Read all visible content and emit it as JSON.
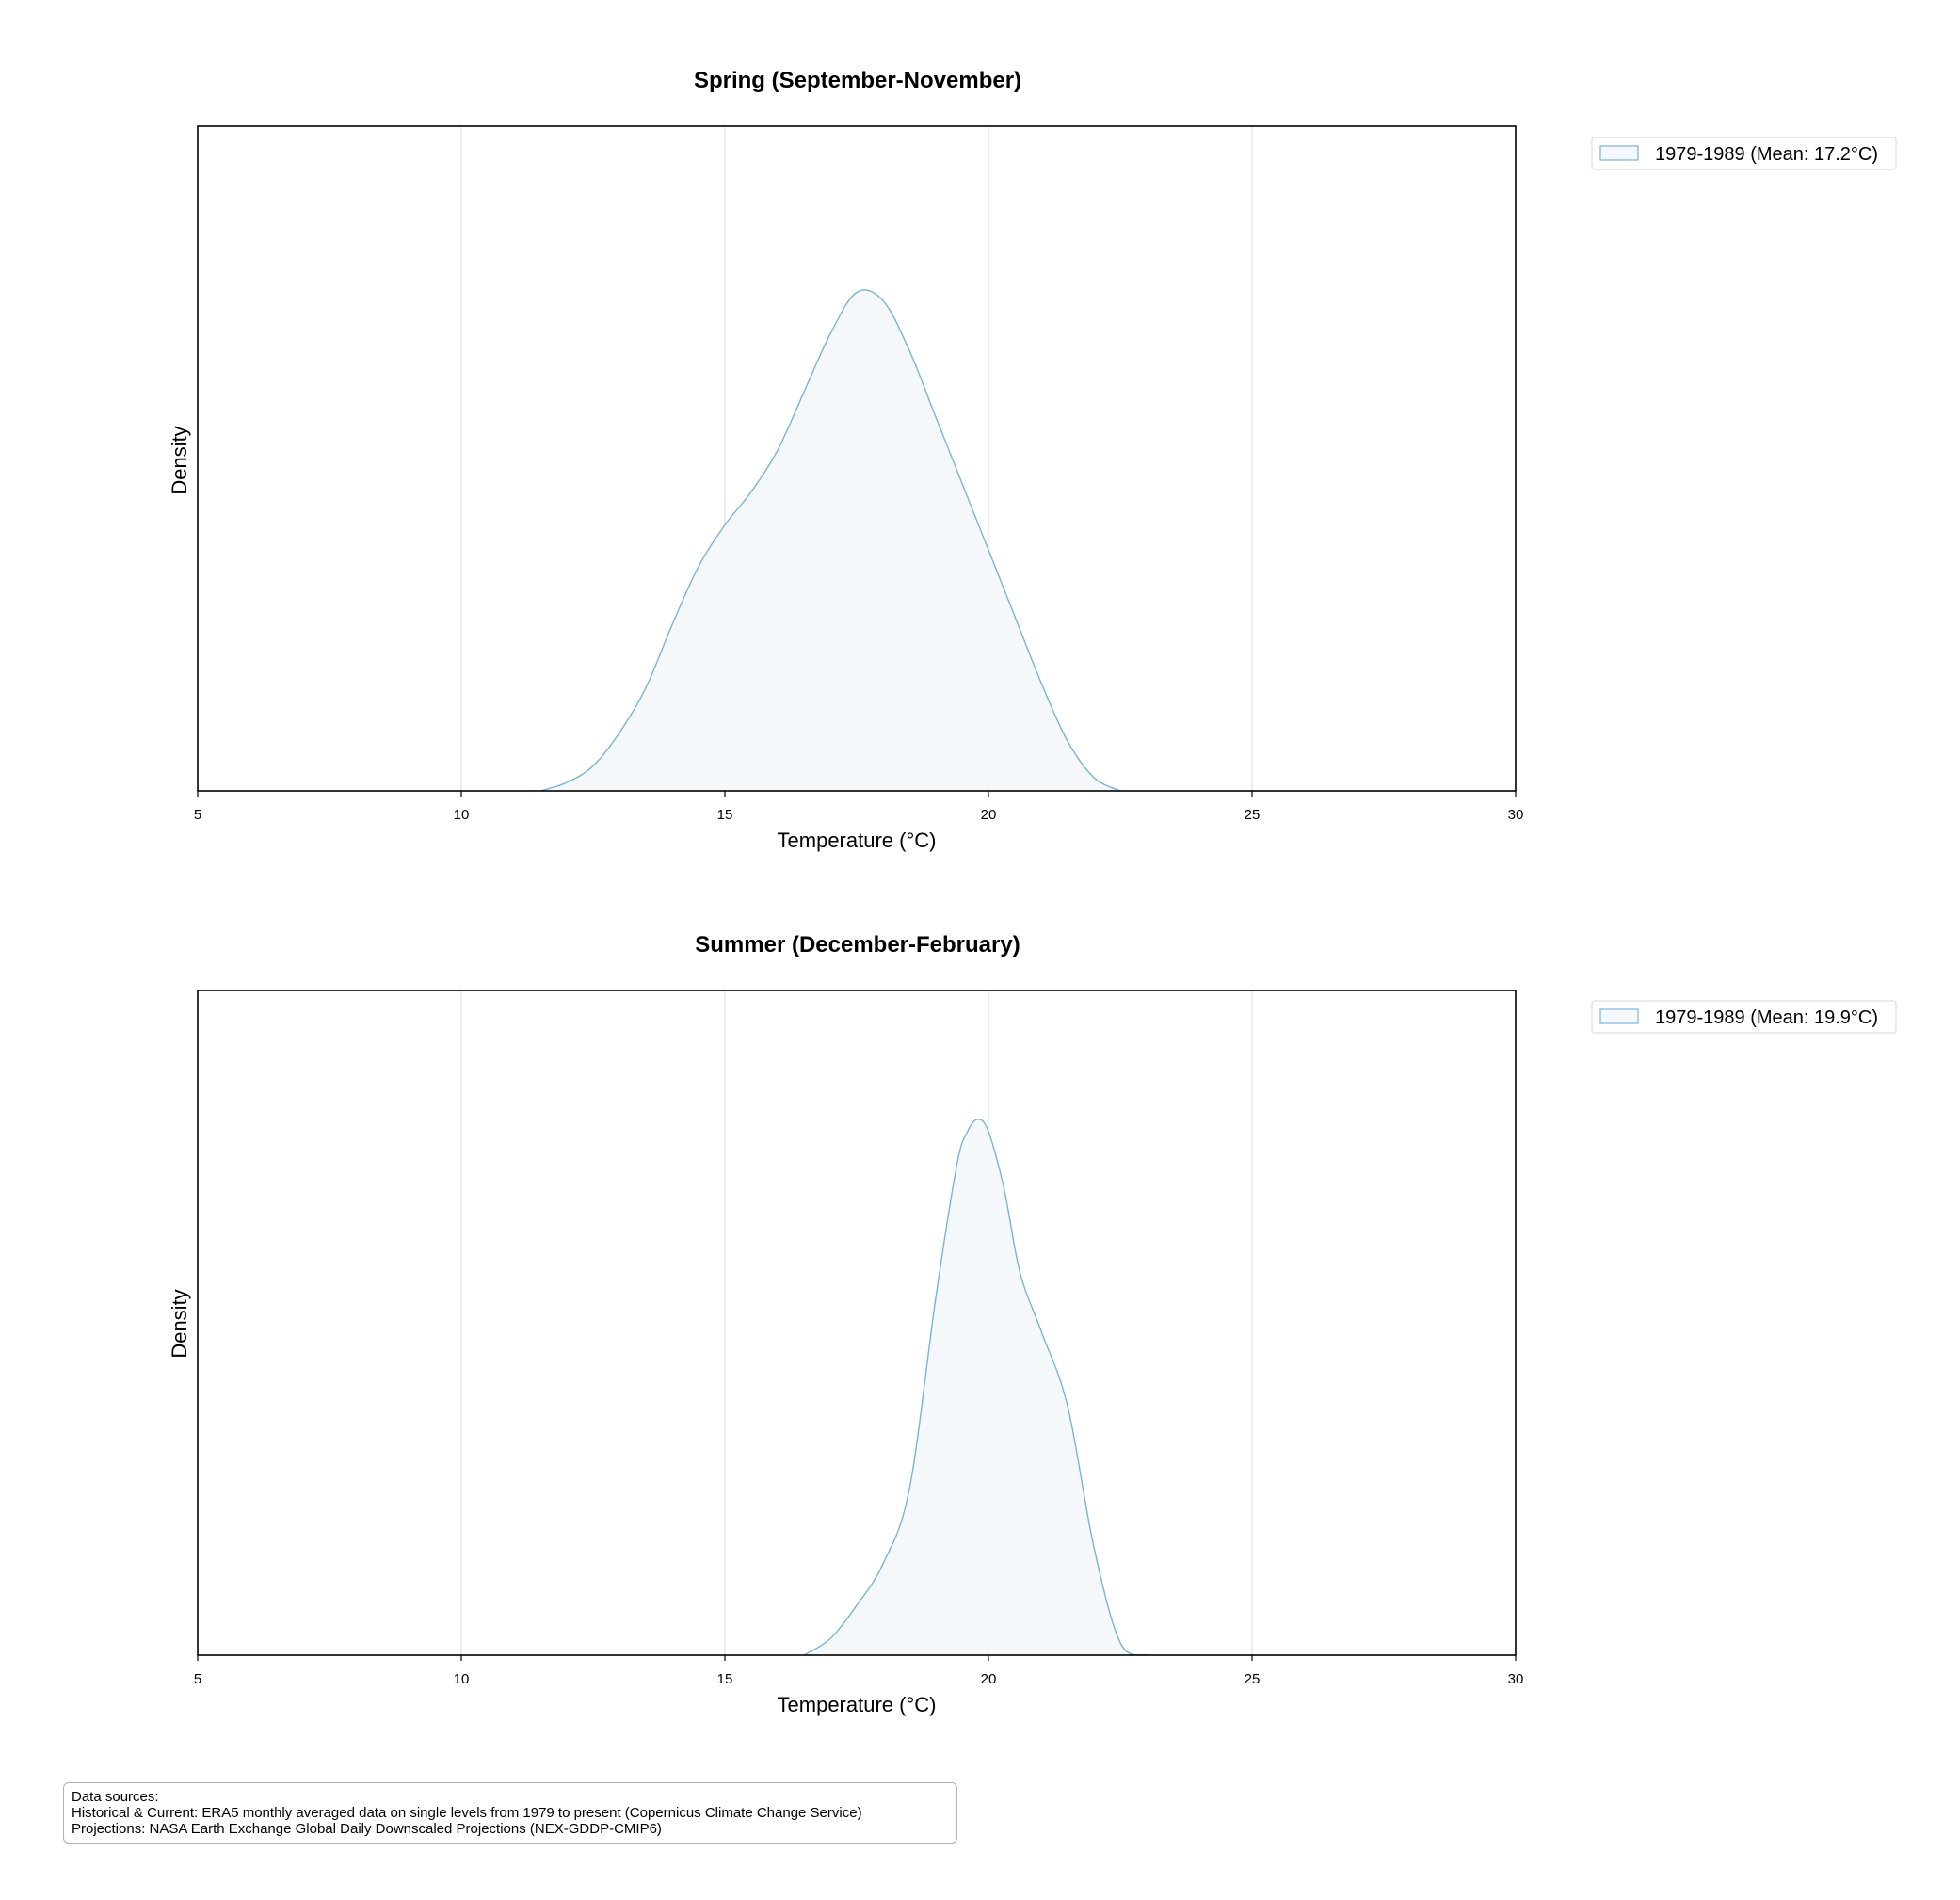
{
  "chart_data": [
    {
      "type": "area",
      "title": "Spring (September-November)",
      "xlabel": "Temperature (°C)",
      "ylabel": "Density",
      "xlim": [
        5,
        30
      ],
      "ylim": [
        0,
        0.4
      ],
      "xticks": [
        5,
        10,
        15,
        20,
        25,
        30
      ],
      "grid": "vertical",
      "legend_position": "outside top-right",
      "series": [
        {
          "name": "1979-1989 (Mean: 17.2°C)",
          "color": "#7ab3d9",
          "fill": "#f4f8fb",
          "x": [
            11.5,
            12.0,
            12.5,
            13.0,
            13.5,
            14.0,
            14.5,
            15.0,
            15.5,
            16.0,
            16.5,
            17.0,
            17.5,
            18.0,
            18.5,
            19.0,
            19.5,
            20.0,
            20.5,
            21.0,
            21.5,
            22.0,
            22.5
          ],
          "y": [
            0.0,
            0.005,
            0.015,
            0.035,
            0.062,
            0.1,
            0.135,
            0.16,
            0.18,
            0.205,
            0.24,
            0.275,
            0.3,
            0.295,
            0.265,
            0.225,
            0.185,
            0.145,
            0.105,
            0.065,
            0.03,
            0.008,
            0.0
          ]
        }
      ]
    },
    {
      "type": "area",
      "title": "Summer (December-February)",
      "xlabel": "Temperature (°C)",
      "ylabel": "Density",
      "xlim": [
        5,
        30
      ],
      "ylim": [
        0,
        0.8
      ],
      "xticks": [
        5,
        10,
        15,
        20,
        25,
        30
      ],
      "grid": "vertical",
      "legend_position": "outside top-right",
      "series": [
        {
          "name": "1979-1989 (Mean: 19.9°C)",
          "color": "#7ab3d9",
          "fill": "#f4f8fb",
          "x": [
            16.5,
            17.0,
            17.5,
            18.0,
            18.5,
            19.0,
            19.4,
            19.6,
            19.8,
            20.0,
            20.3,
            20.6,
            21.0,
            21.5,
            22.0,
            22.5,
            23.0
          ],
          "y": [
            0.0,
            0.02,
            0.06,
            0.11,
            0.2,
            0.43,
            0.59,
            0.63,
            0.645,
            0.63,
            0.56,
            0.46,
            0.39,
            0.3,
            0.13,
            0.015,
            0.0
          ]
        }
      ]
    }
  ],
  "sources": {
    "heading": "Data sources:",
    "line1": "Historical & Current: ERA5 monthly averaged data on single levels from 1979 to present (Copernicus Climate Change Service)",
    "line2": "Projections: NASA Earth Exchange Global Daily Downscaled Projections (NEX-GDDP-CMIP6)"
  }
}
